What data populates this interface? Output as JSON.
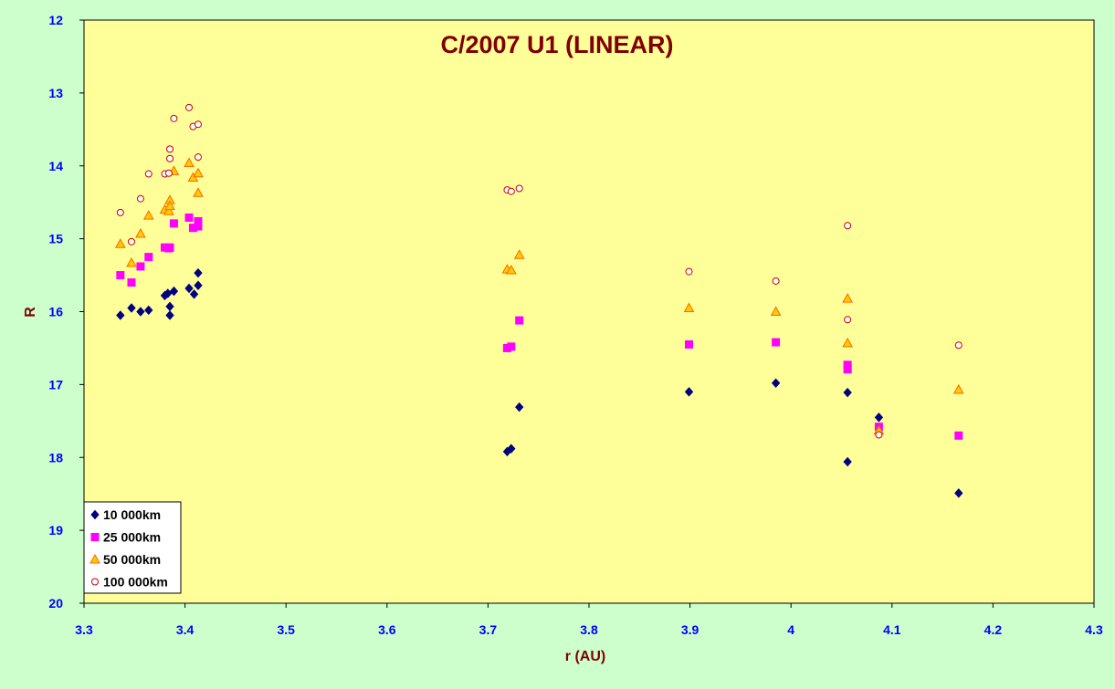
{
  "chart_data": {
    "type": "scatter",
    "title": "C/2007 U1 (LINEAR)",
    "xlabel": "r (AU)",
    "ylabel": "R",
    "xlim": [
      3.3,
      4.3
    ],
    "ylim": [
      12,
      20
    ],
    "y_inverted": true,
    "x_ticks": [
      "3.3",
      "3.4",
      "3.5",
      "3.6",
      "3.7",
      "3.8",
      "3.9",
      "4",
      "4.1",
      "4.2",
      "4.3"
    ],
    "y_ticks": [
      "12",
      "13",
      "14",
      "15",
      "16",
      "17",
      "18",
      "19",
      "20"
    ],
    "grid": false,
    "legend_position": "bottom-left",
    "colors": {
      "plot_background": "#ffff99",
      "page_background": "#ccffcc",
      "title": "#800000",
      "axis_label": "#800000",
      "tick_label": "#0000ff"
    },
    "series": [
      {
        "name": "10 000km",
        "marker": "diamond",
        "color": "#000080",
        "points": [
          [
            3.336,
            16.05
          ],
          [
            3.347,
            15.95
          ],
          [
            3.356,
            16.0
          ],
          [
            3.364,
            15.98
          ],
          [
            3.38,
            15.78
          ],
          [
            3.383,
            15.75
          ],
          [
            3.385,
            15.93
          ],
          [
            3.385,
            16.05
          ],
          [
            3.389,
            15.72
          ],
          [
            3.404,
            15.68
          ],
          [
            3.409,
            15.76
          ],
          [
            3.413,
            15.47
          ],
          [
            3.413,
            15.64
          ],
          [
            3.719,
            17.92
          ],
          [
            3.723,
            17.88
          ],
          [
            3.731,
            17.31
          ],
          [
            3.899,
            17.1
          ],
          [
            3.985,
            16.98
          ],
          [
            4.056,
            17.11
          ],
          [
            4.056,
            18.06
          ],
          [
            4.087,
            17.45
          ],
          [
            4.166,
            18.49
          ]
        ]
      },
      {
        "name": "25 000km",
        "marker": "square",
        "color": "#ff00ff",
        "points": [
          [
            3.336,
            15.5
          ],
          [
            3.347,
            15.6
          ],
          [
            3.356,
            15.38
          ],
          [
            3.364,
            15.25
          ],
          [
            3.38,
            15.12
          ],
          [
            3.384,
            15.13
          ],
          [
            3.385,
            15.12
          ],
          [
            3.389,
            14.79
          ],
          [
            3.404,
            14.71
          ],
          [
            3.408,
            14.85
          ],
          [
            3.413,
            14.76
          ],
          [
            3.413,
            14.83
          ],
          [
            3.719,
            16.5
          ],
          [
            3.723,
            16.48
          ],
          [
            3.731,
            16.12
          ],
          [
            3.899,
            16.45
          ],
          [
            3.985,
            16.42
          ],
          [
            4.056,
            16.73
          ],
          [
            4.056,
            16.79
          ],
          [
            4.087,
            17.58
          ],
          [
            4.166,
            17.7
          ]
        ]
      },
      {
        "name": "50 000km",
        "marker": "triangle",
        "color": "#ff6600",
        "fill": "#ffcc00",
        "points": [
          [
            3.336,
            15.07
          ],
          [
            3.347,
            15.33
          ],
          [
            3.356,
            14.93
          ],
          [
            3.364,
            14.68
          ],
          [
            3.38,
            14.6
          ],
          [
            3.384,
            14.62
          ],
          [
            3.385,
            14.47
          ],
          [
            3.385,
            14.55
          ],
          [
            3.389,
            14.07
          ],
          [
            3.404,
            13.96
          ],
          [
            3.408,
            14.16
          ],
          [
            3.413,
            14.1
          ],
          [
            3.413,
            14.37
          ],
          [
            3.719,
            15.42
          ],
          [
            3.723,
            15.43
          ],
          [
            3.731,
            15.22
          ],
          [
            3.899,
            15.95
          ],
          [
            3.985,
            16.0
          ],
          [
            4.056,
            15.82
          ],
          [
            4.056,
            16.43
          ],
          [
            4.087,
            17.63
          ],
          [
            4.166,
            17.07
          ]
        ]
      },
      {
        "name": "100 000km",
        "marker": "circle",
        "color": "#cc0000",
        "points": [
          [
            3.336,
            14.64
          ],
          [
            3.347,
            15.04
          ],
          [
            3.356,
            14.45
          ],
          [
            3.364,
            14.11
          ],
          [
            3.38,
            14.11
          ],
          [
            3.384,
            14.1
          ],
          [
            3.385,
            13.77
          ],
          [
            3.385,
            13.9
          ],
          [
            3.389,
            13.35
          ],
          [
            3.404,
            13.2
          ],
          [
            3.408,
            13.46
          ],
          [
            3.413,
            13.43
          ],
          [
            3.413,
            13.88
          ],
          [
            3.719,
            14.33
          ],
          [
            3.723,
            14.35
          ],
          [
            3.731,
            14.31
          ],
          [
            3.899,
            15.45
          ],
          [
            3.985,
            15.58
          ],
          [
            4.056,
            14.82
          ],
          [
            4.056,
            16.11
          ],
          [
            4.087,
            17.69
          ],
          [
            4.166,
            16.46
          ]
        ]
      }
    ]
  }
}
